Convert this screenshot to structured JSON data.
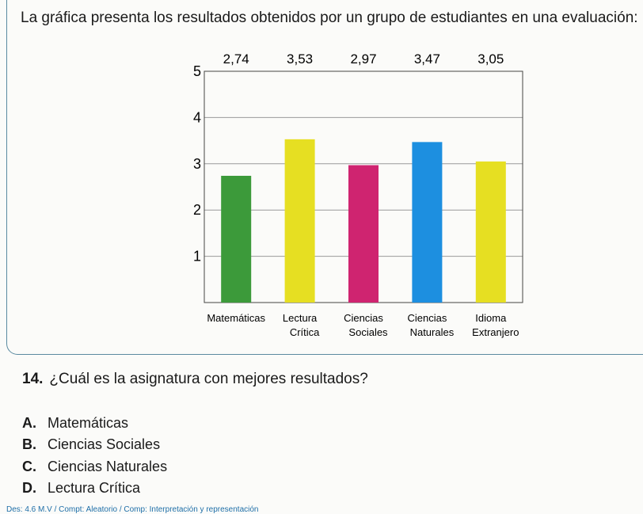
{
  "intro": "La gráfica presenta los resultados obtenidos por un grupo de estudiantes en una evaluación:",
  "chart_data": {
    "type": "bar",
    "categories": [
      [
        "Matemáticas"
      ],
      [
        "Lectura",
        "Crítica"
      ],
      [
        "Ciencias",
        "Sociales"
      ],
      [
        "Ciencias",
        "Naturales"
      ],
      [
        "Idioma",
        "Extranjero"
      ]
    ],
    "values": [
      2.74,
      3.53,
      2.97,
      3.47,
      3.05
    ],
    "value_labels": [
      "2,74",
      "3,53",
      "2,97",
      "3,47",
      "3,05"
    ],
    "colors": [
      "#3c9a3a",
      "#e6df22",
      "#cf2470",
      "#1d8fe0",
      "#e6df22"
    ],
    "ylim": [
      0,
      5
    ],
    "yticks": [
      1,
      2,
      3,
      4,
      5
    ],
    "grid": true
  },
  "question": {
    "number": "14.",
    "text": "¿Cuál es la asignatura con mejores resultados?",
    "options": [
      {
        "letter": "A.",
        "text": "Matemáticas"
      },
      {
        "letter": "B.",
        "text": "Ciencias Sociales"
      },
      {
        "letter": "C.",
        "text": "Ciencias Naturales"
      },
      {
        "letter": "D.",
        "text": "Lectura Crítica"
      }
    ]
  },
  "footer": "Des: 4.6 M.V / Compt: Aleatorio / Comp: Interpretación y representación"
}
